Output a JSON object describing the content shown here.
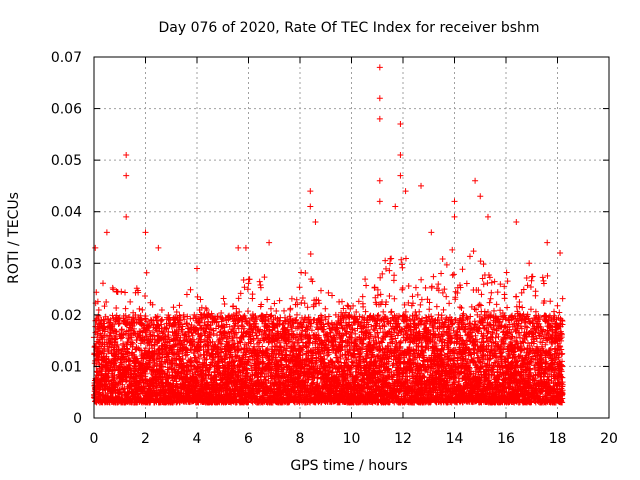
{
  "chart_data": {
    "type": "scatter",
    "title": "Day 076 of 2020, Rate Of TEC Index for receiver bshm",
    "xlabel": "GPS time / hours",
    "ylabel": "ROTI / TECUs",
    "xlim": [
      0,
      20
    ],
    "ylim": [
      0,
      0.07
    ],
    "x_ticks": [
      0,
      2,
      4,
      6,
      8,
      10,
      12,
      14,
      16,
      18,
      20
    ],
    "x_tick_labels": [
      "0",
      "2",
      "4",
      "6",
      "8",
      "10",
      "12",
      "14",
      "16",
      "18",
      "20"
    ],
    "y_ticks": [
      0,
      0.01,
      0.02,
      0.03,
      0.04,
      0.05,
      0.06,
      0.07
    ],
    "y_tick_labels": [
      "0",
      "0.01",
      "0.02",
      "0.03",
      "0.04",
      "0.05",
      "0.06",
      "0.07"
    ],
    "grid": true,
    "legend": "none",
    "marker": "plus",
    "color": "#ff0000",
    "data_extent_x": [
      0,
      18.2
    ],
    "baseline_range": [
      0.003,
      0.02
    ],
    "notable_peaks": [
      {
        "x": 0.05,
        "y": 0.033
      },
      {
        "x": 0.5,
        "y": 0.036
      },
      {
        "x": 1.25,
        "y": 0.051
      },
      {
        "x": 1.25,
        "y": 0.047
      },
      {
        "x": 1.25,
        "y": 0.039
      },
      {
        "x": 2.0,
        "y": 0.036
      },
      {
        "x": 2.5,
        "y": 0.033
      },
      {
        "x": 4.0,
        "y": 0.029
      },
      {
        "x": 5.6,
        "y": 0.033
      },
      {
        "x": 5.9,
        "y": 0.033
      },
      {
        "x": 6.8,
        "y": 0.034
      },
      {
        "x": 8.4,
        "y": 0.044
      },
      {
        "x": 8.4,
        "y": 0.041
      },
      {
        "x": 8.6,
        "y": 0.038
      },
      {
        "x": 11.1,
        "y": 0.068
      },
      {
        "x": 11.1,
        "y": 0.062
      },
      {
        "x": 11.1,
        "y": 0.058
      },
      {
        "x": 11.1,
        "y": 0.046
      },
      {
        "x": 11.1,
        "y": 0.042
      },
      {
        "x": 11.9,
        "y": 0.057
      },
      {
        "x": 11.9,
        "y": 0.051
      },
      {
        "x": 11.9,
        "y": 0.047
      },
      {
        "x": 12.1,
        "y": 0.044
      },
      {
        "x": 11.7,
        "y": 0.041
      },
      {
        "x": 12.7,
        "y": 0.045
      },
      {
        "x": 13.1,
        "y": 0.036
      },
      {
        "x": 14.0,
        "y": 0.042
      },
      {
        "x": 14.0,
        "y": 0.039
      },
      {
        "x": 14.8,
        "y": 0.046
      },
      {
        "x": 15.0,
        "y": 0.043
      },
      {
        "x": 15.3,
        "y": 0.039
      },
      {
        "x": 16.4,
        "y": 0.038
      },
      {
        "x": 16.9,
        "y": 0.03
      },
      {
        "x": 17.6,
        "y": 0.034
      },
      {
        "x": 18.1,
        "y": 0.032
      }
    ],
    "activity_peaks": [
      {
        "x": 0.5,
        "y": 0.029
      },
      {
        "x": 1.3,
        "y": 0.03
      },
      {
        "x": 2.1,
        "y": 0.03
      },
      {
        "x": 2.9,
        "y": 0.025
      },
      {
        "x": 3.9,
        "y": 0.027
      },
      {
        "x": 4.8,
        "y": 0.024
      },
      {
        "x": 5.8,
        "y": 0.03
      },
      {
        "x": 6.8,
        "y": 0.03
      },
      {
        "x": 7.5,
        "y": 0.024
      },
      {
        "x": 8.4,
        "y": 0.033
      },
      {
        "x": 9.3,
        "y": 0.025
      },
      {
        "x": 10.2,
        "y": 0.027
      },
      {
        "x": 11.1,
        "y": 0.034
      },
      {
        "x": 11.9,
        "y": 0.035
      },
      {
        "x": 13.0,
        "y": 0.03
      },
      {
        "x": 14.0,
        "y": 0.034
      },
      {
        "x": 14.9,
        "y": 0.035
      },
      {
        "x": 16.3,
        "y": 0.03
      },
      {
        "x": 17.5,
        "y": 0.031
      },
      {
        "x": 18.1,
        "y": 0.027
      }
    ]
  }
}
